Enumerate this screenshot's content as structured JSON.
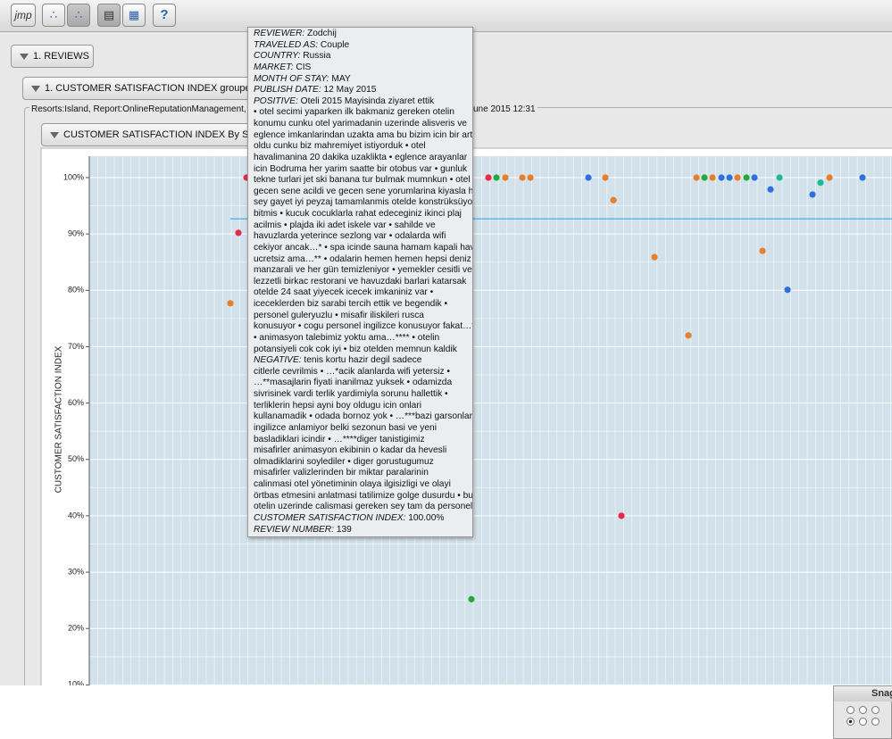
{
  "toolbar": {
    "logo": "jmp",
    "help": "?"
  },
  "outline": {
    "reviews": "1. REVIEWS",
    "grouped": "1. CUSTOMER SATISFACTION INDEX grouped by S",
    "filter_left": "Resorts:Island, Report:OnlineReputationManagement, Su",
    "filter_right": "une 2015 12:31",
    "by_source": "CUSTOMER SATISFACTION INDEX By SOURC"
  },
  "snag": {
    "title": "Snag"
  },
  "chart_data": {
    "type": "scatter",
    "ylabel": "CUSTOMER SATISFACTION INDEX",
    "xlim": [
      0,
      89.9
    ],
    "ylim": [
      9.9,
      103.8
    ],
    "yticks": [
      {
        "value": 10,
        "label": "10%"
      },
      {
        "value": 20,
        "label": "20%"
      },
      {
        "value": 30,
        "label": "30%"
      },
      {
        "value": 40,
        "label": "40%"
      },
      {
        "value": 50,
        "label": "50%"
      },
      {
        "value": 60,
        "label": "60%"
      },
      {
        "value": 70,
        "label": "70%"
      },
      {
        "value": 80,
        "label": "80%"
      },
      {
        "value": 90,
        "label": "90%"
      },
      {
        "value": 100,
        "label": "100%"
      }
    ],
    "grid": true,
    "reference_line": 92.7,
    "series": [
      {
        "color": "#e67e2a",
        "x": [
          15.8,
          46.6,
          48.5,
          49.4,
          57.8,
          58.7,
          63.3,
          67.1,
          68,
          69.8,
          72.6,
          75.4,
          82.9
        ],
        "values": [
          77.7,
          100,
          100,
          100,
          100,
          96.0,
          85.9,
          72.0,
          100,
          100,
          100,
          87.0,
          100
        ]
      },
      {
        "color": "#e8294a",
        "x": [
          16.7,
          17.6,
          44.7,
          59.6
        ],
        "values": [
          90.2,
          100,
          100,
          40.0
        ]
      },
      {
        "color": "#22aa3a",
        "x": [
          45.6,
          68.9,
          73.6,
          42.8
        ],
        "values": [
          100,
          100,
          100,
          25.2
        ]
      },
      {
        "color": "#2f6fe0",
        "x": [
          55.9,
          70.8,
          71.7,
          74.5,
          76.3,
          78.2,
          81,
          86.6
        ],
        "values": [
          100,
          100,
          100,
          100,
          97.9,
          80.1,
          97.0,
          100
        ]
      },
      {
        "color": "#1fb89a",
        "x": [
          77.3,
          81.9
        ],
        "values": [
          100,
          99.1
        ]
      }
    ]
  },
  "tooltip": {
    "lines": [
      {
        "label": "REVIEWER:",
        "text": " Zodchij"
      },
      {
        "label": "TRAVELED AS:",
        "text": " Couple"
      },
      {
        "label": "COUNTRY:",
        "text": " Russia"
      },
      {
        "label": "MARKET:",
        "text": " CIS"
      },
      {
        "label": "MONTH OF STAY:",
        "text": " MAY"
      },
      {
        "label": "PUBLISH DATE:",
        "text": " 12 May 2015"
      },
      {
        "label": "POSITIVE:",
        "text": " Oteli 2015 Mayisinda ziyaret ettik"
      },
      {
        "text": "• otel secimi yaparken ilk bakmaniz gereken otelin"
      },
      {
        "text": "konumu cunku otel yarimadanin uzerinde alisveris ve"
      },
      {
        "text": "eglence imkanlarindan uzakta ama bu bizim icin bir arti"
      },
      {
        "text": "oldu cunku biz mahremiyet istiyorduk • otel"
      },
      {
        "text": "havalimanina 20 dakika uzaklikta • eglence arayanlar"
      },
      {
        "text": "icin Bodruma her yarim saatte bir otobus var • gunluk"
      },
      {
        "text": "tekne turlari jet ski banana tur bulmak mumnkun • otel"
      },
      {
        "text": "gecen sene acildi ve gecen sene yorumlarina kiyasla her"
      },
      {
        "text": "sey gayet iyi peyzaj tamamlanmis otelde konstrüksüyon"
      },
      {
        "text": "bitmis • kucuk cocuklarla rahat edeceginiz ikinci plaj"
      },
      {
        "text": "acilmis • plajda iki adet iskele var • sahilde ve"
      },
      {
        "text": "havuzlarda yeterince sezlong var • odalarda wifi"
      },
      {
        "text": "cekiyor ancak…* • spa icinde sauna hamam kapali havuz"
      },
      {
        "text": "ucretsiz ama…** • odalarin hemen hemen hepsi deniz"
      },
      {
        "text": "manzarali ve her gün temizleniyor • yemekler cesitli ve"
      },
      {
        "text": "lezzetli birkac restorani ve havuzdaki barlari katarsak"
      },
      {
        "text": "otelde 24 saat yiyecek icecek imkaniniz var •"
      },
      {
        "text": "iceceklerden biz sarabi tercih ettik ve begendik •"
      },
      {
        "text": "personel guleryuzlu • misafir iliskileri rusca"
      },
      {
        "text": "konusuyor • cogu personel ingilizce konusuyor fakat…***"
      },
      {
        "text": "• animasyon talebimiz yoktu ama…**** • otelin"
      },
      {
        "text": "potansiyeli cok cok iyi • biz otelden memnun kaldik"
      },
      {
        "label": "NEGATIVE:",
        "text": " tenis kortu hazir degil sadece"
      },
      {
        "text": "citlerle cevrilmis • …*acik alanlarda wifi yetersiz •"
      },
      {
        "text": "…**masajlarin fiyati inanilmaz yuksek • odamizda"
      },
      {
        "text": "sivrisinek vardi terlik yardimiyla sorunu hallettik •"
      },
      {
        "text": "terliklerin hepsi ayni boy oldugu icin onlari"
      },
      {
        "text": "kullanamadik • odada bornoz yok • …***bazi garsonlar"
      },
      {
        "text": "ingilizce anlamiyor belki sezonun basi ve yeni"
      },
      {
        "text": "basladiklari icindir • …****diger tanistigimiz"
      },
      {
        "text": "misafirler animasyon ekibinin o kadar da hevesli"
      },
      {
        "text": "olmadiklarini soylediler • diger gorustugumuz"
      },
      {
        "text": "misafirler valizlerinden bir miktar paralarinin"
      },
      {
        "text": "calinmasi otel yönetiminin olaya ilgisizligi ve olayi"
      },
      {
        "text": "örtbas etmesini anlatmasi tatilimize golge dusurdu • bu"
      },
      {
        "text": "otelin uzerinde calismasi gereken sey tam da personel"
      },
      {
        "label": "CUSTOMER SATISFACTION INDEX:",
        "text": " 100.00%"
      },
      {
        "label": "REVIEW NUMBER:",
        "text": " 139"
      }
    ]
  }
}
